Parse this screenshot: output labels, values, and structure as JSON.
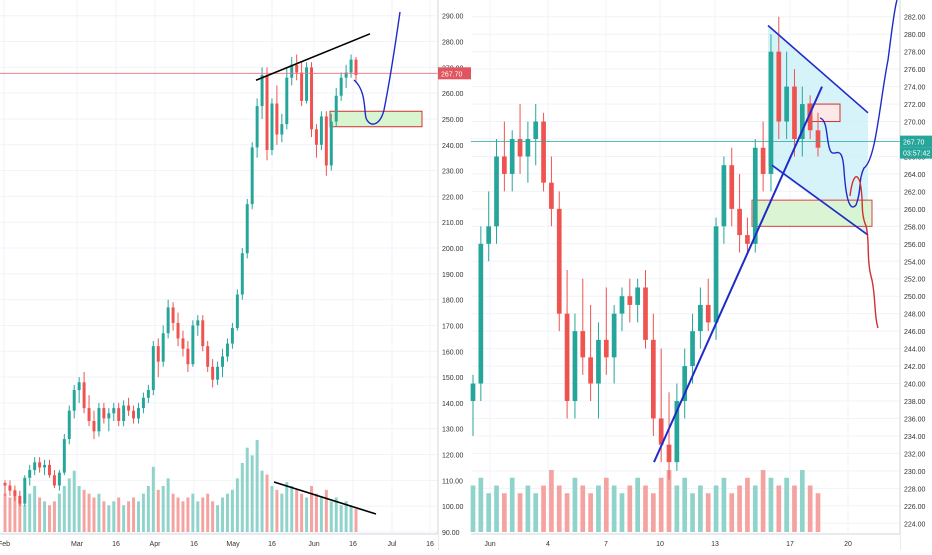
{
  "colors": {
    "up": "#26a69a",
    "down": "#ef5350",
    "vol_up": "#8fd3cb",
    "vol_down": "#f5a3a0",
    "grid": "#f0f3fa",
    "axis_text": "#333333",
    "price_line_left": "#e8707a",
    "price_line_right": "#26a69a",
    "drawing_black": "#000000",
    "drawing_blue": "#1f2bc9",
    "drawing_red": "#d32f2f",
    "zone_fill": "#d8f5d0",
    "zone_border": "#d32f2f",
    "wedge_fill": "#c6eef8"
  },
  "chart_data": [
    {
      "type": "candlestick",
      "name": "left-panel",
      "x_labels": [
        "Feb",
        "Mar",
        "16",
        "Apr",
        "16",
        "May",
        "16",
        "Jun",
        "16",
        "Jul",
        "16"
      ],
      "y_ticks": [
        "90.00",
        "100.00",
        "110.00",
        "120.00",
        "130.00",
        "140.00",
        "150.00",
        "160.00",
        "170.00",
        "180.00",
        "190.00",
        "200.00",
        "210.00",
        "220.00",
        "230.00",
        "240.00",
        "250.00",
        "260.00",
        "270.00",
        "280.00",
        "290.00"
      ],
      "ylim": [
        90,
        293
      ],
      "last_price": "267.70",
      "candles_ohlc": [
        [
          109,
          110,
          104,
          108
        ],
        [
          108,
          110,
          104,
          106
        ],
        [
          106,
          108,
          102,
          104
        ],
        [
          104,
          106,
          100,
          101
        ],
        [
          101,
          112,
          100,
          111
        ],
        [
          111,
          116,
          108,
          114
        ],
        [
          114,
          119,
          112,
          117
        ],
        [
          117,
          119,
          113,
          115
        ],
        [
          115,
          118,
          112,
          116
        ],
        [
          116,
          118,
          111,
          112
        ],
        [
          112,
          114,
          107,
          108
        ],
        [
          108,
          114,
          106,
          113
        ],
        [
          113,
          128,
          112,
          126
        ],
        [
          126,
          139,
          124,
          137
        ],
        [
          137,
          147,
          134,
          145
        ],
        [
          145,
          150,
          140,
          148
        ],
        [
          148,
          152,
          136,
          138
        ],
        [
          138,
          143,
          131,
          133
        ],
        [
          133,
          137,
          126,
          129
        ],
        [
          129,
          140,
          127,
          138
        ],
        [
          138,
          140,
          132,
          134
        ],
        [
          134,
          138,
          129,
          136
        ],
        [
          136,
          140,
          133,
          138
        ],
        [
          138,
          140,
          131,
          133
        ],
        [
          133,
          141,
          131,
          139
        ],
        [
          139,
          142,
          135,
          137
        ],
        [
          137,
          139,
          132,
          134
        ],
        [
          134,
          140,
          132,
          138
        ],
        [
          138,
          144,
          136,
          142
        ],
        [
          142,
          147,
          140,
          145
        ],
        [
          145,
          164,
          143,
          162
        ],
        [
          162,
          165,
          150,
          156
        ],
        [
          156,
          170,
          154,
          167
        ],
        [
          167,
          180,
          165,
          177
        ],
        [
          177,
          179,
          168,
          171
        ],
        [
          171,
          175,
          162,
          165
        ],
        [
          165,
          168,
          158,
          161
        ],
        [
          161,
          164,
          152,
          155
        ],
        [
          155,
          172,
          154,
          170
        ],
        [
          170,
          174,
          166,
          172
        ],
        [
          172,
          174,
          160,
          162
        ],
        [
          162,
          164,
          152,
          154
        ],
        [
          154,
          157,
          146,
          149
        ],
        [
          149,
          156,
          147,
          154
        ],
        [
          154,
          161,
          150,
          158
        ],
        [
          158,
          165,
          156,
          163
        ],
        [
          163,
          171,
          161,
          169
        ],
        [
          169,
          184,
          168,
          182
        ],
        [
          182,
          200,
          180,
          198
        ],
        [
          198,
          219,
          196,
          217
        ],
        [
          217,
          241,
          215,
          239
        ],
        [
          239,
          258,
          235,
          255
        ],
        [
          255,
          270,
          250,
          267
        ],
        [
          267,
          270,
          234,
          238
        ],
        [
          238,
          258,
          236,
          256
        ],
        [
          256,
          263,
          240,
          244
        ],
        [
          244,
          252,
          241,
          248
        ],
        [
          248,
          270,
          246,
          266
        ],
        [
          266,
          274,
          263,
          271
        ],
        [
          271,
          275,
          265,
          268
        ],
        [
          268,
          272,
          255,
          257
        ],
        [
          257,
          272,
          256,
          270
        ],
        [
          270,
          272,
          243,
          246
        ],
        [
          246,
          248,
          235,
          240
        ],
        [
          240,
          253,
          238,
          251
        ],
        [
          251,
          253,
          228,
          232
        ],
        [
          232,
          252,
          230,
          249
        ],
        [
          249,
          262,
          247,
          259
        ],
        [
          259,
          268,
          257,
          266
        ],
        [
          266,
          271,
          262,
          268
        ],
        [
          268,
          275,
          266,
          273
        ],
        [
          273,
          274,
          264,
          267
        ]
      ],
      "volumes": [
        10,
        9,
        11,
        8,
        7,
        10,
        12,
        9,
        8,
        7,
        8,
        10,
        12,
        14,
        16,
        12,
        11,
        10,
        9,
        10,
        8,
        7,
        8,
        9,
        7,
        8,
        9,
        8,
        10,
        12,
        17,
        11,
        12,
        14,
        10,
        9,
        8,
        9,
        10,
        8,
        9,
        10,
        8,
        7,
        9,
        10,
        11,
        14,
        18,
        22,
        20,
        24,
        16,
        15,
        12,
        11,
        10,
        13,
        12,
        11,
        10,
        9,
        12,
        10,
        9,
        11,
        8,
        9,
        7,
        8,
        7,
        6
      ],
      "annotations": {
        "resistance_line": [
          [
            0.0,
            265
          ],
          [
            1.0,
            283
          ]
        ],
        "volume_divergence_line": [
          [
            0.0,
            111
          ],
          [
            1.0,
            97
          ]
        ],
        "projection_path": "blue-curve-up",
        "demand_zone": [
          247,
          253
        ]
      }
    },
    {
      "type": "candlestick",
      "name": "right-panel",
      "x_labels": [
        "Jun",
        "4",
        "7",
        "10",
        "13",
        "17",
        "20"
      ],
      "y_ticks": [
        "224.00",
        "226.00",
        "228.00",
        "230.00",
        "232.00",
        "234.00",
        "236.00",
        "238.00",
        "240.00",
        "242.00",
        "244.00",
        "246.00",
        "248.00",
        "250.00",
        "252.00",
        "254.00",
        "256.00",
        "258.00",
        "260.00",
        "262.00",
        "264.00",
        "266.00",
        "268.00",
        "270.00",
        "272.00",
        "274.00",
        "276.00",
        "278.00",
        "280.00",
        "282.00"
      ],
      "ylim": [
        223,
        283
      ],
      "last_price": "267.70",
      "countdown": "03:57:42",
      "candles_ohlc": [
        [
          238,
          241,
          234,
          240
        ],
        [
          240,
          258,
          238,
          256
        ],
        [
          256,
          262,
          254,
          258
        ],
        [
          258,
          268,
          256,
          266
        ],
        [
          266,
          270,
          262,
          264
        ],
        [
          264,
          269,
          262,
          268
        ],
        [
          268,
          272,
          264,
          266
        ],
        [
          266,
          270,
          263,
          268
        ],
        [
          268,
          272,
          265,
          270
        ],
        [
          270,
          271,
          262,
          263
        ],
        [
          263,
          266,
          258,
          260
        ],
        [
          260,
          262,
          246,
          248
        ],
        [
          248,
          253,
          236,
          238
        ],
        [
          238,
          248,
          236,
          246
        ],
        [
          246,
          252,
          241,
          243
        ],
        [
          243,
          249,
          238,
          240
        ],
        [
          240,
          247,
          236,
          245
        ],
        [
          245,
          251,
          241,
          243
        ],
        [
          243,
          249,
          240,
          248
        ],
        [
          248,
          251,
          246,
          250
        ],
        [
          250,
          252,
          247,
          249
        ],
        [
          249,
          252,
          247,
          251
        ],
        [
          251,
          253,
          244,
          245
        ],
        [
          245,
          248,
          234,
          236
        ],
        [
          236,
          244,
          231,
          233
        ],
        [
          233,
          239,
          229,
          231
        ],
        [
          231,
          240,
          230,
          238
        ],
        [
          238,
          244,
          236,
          242
        ],
        [
          242,
          248,
          240,
          246
        ],
        [
          246,
          251,
          244,
          249
        ],
        [
          249,
          252,
          246,
          247
        ],
        [
          247,
          259,
          245,
          258
        ],
        [
          258,
          266,
          256,
          265
        ],
        [
          265,
          267,
          258,
          260
        ],
        [
          260,
          264,
          255,
          257
        ],
        [
          257,
          259,
          255,
          256
        ],
        [
          256,
          268,
          255,
          267
        ],
        [
          267,
          270,
          262,
          264
        ],
        [
          264,
          280,
          262,
          278
        ],
        [
          278,
          282,
          268,
          270
        ],
        [
          270,
          278,
          268,
          274
        ],
        [
          274,
          276,
          266,
          268
        ],
        [
          268,
          274,
          266,
          272
        ],
        [
          272,
          273,
          268,
          269
        ],
        [
          269,
          271,
          266,
          267
        ]
      ],
      "volumes": [
        6,
        7,
        5,
        6,
        5,
        7,
        5,
        6,
        5,
        6,
        8,
        6,
        5,
        7,
        6,
        5,
        6,
        7,
        6,
        5,
        6,
        7,
        6,
        5,
        7,
        8,
        6,
        7,
        5,
        6,
        5,
        6,
        7,
        5,
        6,
        7,
        6,
        8,
        7,
        6,
        7,
        6,
        8,
        6,
        5
      ],
      "annotations": {
        "uptrend_line": [
          [
            231,
            0.0
          ],
          [
            274,
            1.0
          ]
        ],
        "wedge_upper": [
          [
            281,
            0.0
          ],
          [
            271,
            1.0
          ]
        ],
        "wedge_lower": [
          [
            265,
            0.0
          ],
          [
            257,
            1.0
          ]
        ],
        "supply_zone": [
          270,
          272
        ],
        "demand_zone": [
          258,
          261
        ],
        "projection_up": "blue-curve-up",
        "projection_down": "red-curve-down"
      }
    }
  ]
}
